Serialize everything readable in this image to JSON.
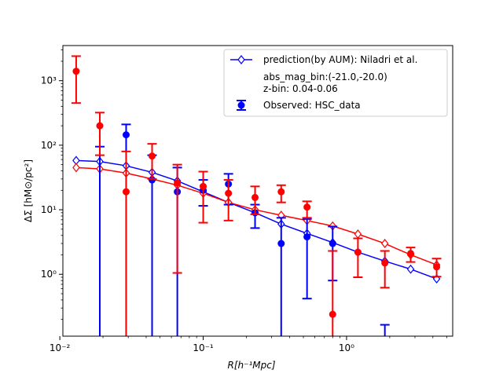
{
  "chart_data": {
    "type": "scatter",
    "title": "",
    "xlabel": "R[h⁻¹Mpc]",
    "ylabel": "ΔΣ [hM⊙/pc²]",
    "xscale": "log",
    "yscale": "log",
    "xlim": [
      0.0105,
      5.5
    ],
    "ylim": [
      0.11,
      3500
    ],
    "grid": false,
    "legend_position": "top-right",
    "x_ticks": [
      {
        "value": 0.01,
        "label": "10⁻²"
      },
      {
        "value": 0.1,
        "label": "10⁻¹"
      },
      {
        "value": 1,
        "label": "10⁰"
      }
    ],
    "y_ticks": [
      {
        "value": 1,
        "label": "10⁰"
      },
      {
        "value": 10,
        "label": "10¹"
      },
      {
        "value": 100,
        "label": "10²"
      },
      {
        "value": 1000,
        "label": "10³"
      }
    ],
    "legend": {
      "prediction_label": "prediction(by AUM): Niladri et al.",
      "info_line1": "abs_mag_bin:(-21.0,-20.0)",
      "info_line2": "z-bin: 0.04-0.06",
      "observed_label": "Observed: HSC_data"
    },
    "series": [
      {
        "role": "prediction",
        "color": "#0000ff",
        "x": [
          0.013,
          0.019,
          0.029,
          0.044,
          0.066,
          0.1,
          0.15,
          0.23,
          0.35,
          0.53,
          0.8,
          1.2,
          1.85,
          2.8,
          4.25
        ],
        "y": [
          58,
          56,
          48,
          38,
          28,
          19,
          13,
          9,
          6,
          4.3,
          3.1,
          2.2,
          1.6,
          1.2,
          0.85
        ]
      },
      {
        "role": "prediction",
        "color": "#ff0000",
        "x": [
          0.013,
          0.019,
          0.029,
          0.044,
          0.066,
          0.1,
          0.15,
          0.23,
          0.35,
          0.53,
          0.8,
          1.2,
          1.85,
          2.8,
          4.25
        ],
        "y": [
          45,
          43,
          37,
          30,
          24,
          18,
          13,
          10,
          8.2,
          6.8,
          5.6,
          4.2,
          3.0,
          2.0,
          1.4
        ]
      },
      {
        "role": "observed",
        "color": "#0000ff",
        "points": [
          {
            "x": 0.019,
            "y": null,
            "upper": 95
          },
          {
            "x": 0.029,
            "y": 145,
            "upper": 210
          },
          {
            "x": 0.044,
            "y": 29,
            "upper": 70
          },
          {
            "x": 0.066,
            "y": 19,
            "upper": 45
          },
          {
            "x": 0.1,
            "y": 20,
            "upper": 29,
            "lower": 11.5
          },
          {
            "x": 0.15,
            "y": 25,
            "upper": 36,
            "lower": 12
          },
          {
            "x": 0.23,
            "y": 9,
            "upper": 12,
            "lower": 5.2
          },
          {
            "x": 0.35,
            "y": 3,
            "upper": 7.5
          },
          {
            "x": 0.53,
            "y": 3.8,
            "upper": 7.2,
            "lower": 0.42
          },
          {
            "x": 0.8,
            "y": 3,
            "upper": 5.5,
            "lower": 0.8
          },
          {
            "x": 1.85,
            "y": null,
            "upper": 0.165
          }
        ]
      },
      {
        "role": "observed",
        "color": "#ff0000",
        "points": [
          {
            "x": 0.013,
            "y": 1400,
            "upper": 2400,
            "lower": 450
          },
          {
            "x": 0.019,
            "y": 200,
            "upper": 320,
            "lower": 70
          },
          {
            "x": 0.029,
            "y": 19,
            "upper": 80
          },
          {
            "x": 0.044,
            "y": 68,
            "upper": 105,
            "lower": 30
          },
          {
            "x": 0.066,
            "y": 26,
            "upper": 50,
            "lower": 1.05
          },
          {
            "x": 0.1,
            "y": 23,
            "upper": 39,
            "lower": 6.3
          },
          {
            "x": 0.15,
            "y": 18,
            "upper": 29,
            "lower": 6.8
          },
          {
            "x": 0.23,
            "y": 15.5,
            "upper": 23,
            "lower": 8.5
          },
          {
            "x": 0.35,
            "y": 19,
            "upper": 24,
            "lower": 13
          },
          {
            "x": 0.53,
            "y": 11,
            "upper": 13.5,
            "lower": 7.5
          },
          {
            "x": 0.8,
            "y": 0.24,
            "upper": 2.3
          },
          {
            "x": 1.2,
            "y": 2.2,
            "upper": 3.6,
            "lower": 0.9
          },
          {
            "x": 1.85,
            "y": 1.5,
            "upper": 2.3,
            "lower": 0.62
          },
          {
            "x": 2.8,
            "y": 2.1,
            "upper": 2.6,
            "lower": 1.55
          },
          {
            "x": 4.25,
            "y": 1.3,
            "upper": 1.75,
            "lower": 0.92
          }
        ]
      }
    ]
  }
}
